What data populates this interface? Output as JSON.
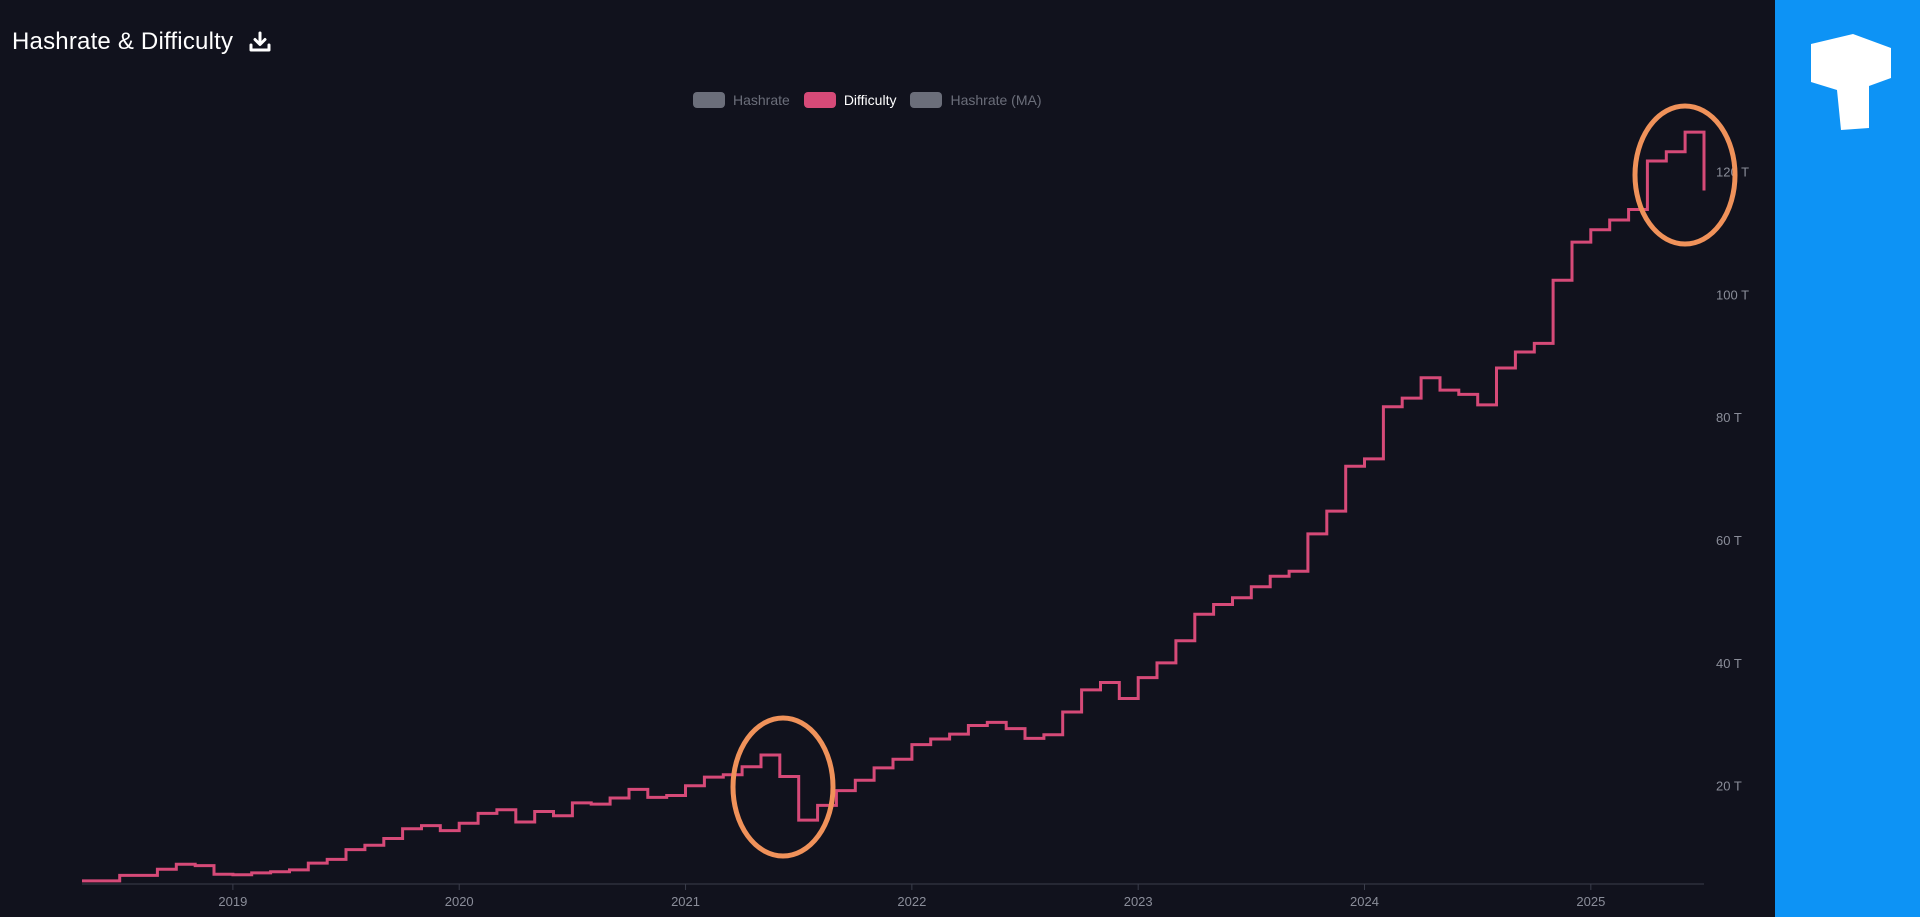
{
  "header": {
    "title": "Hashrate & Difficulty"
  },
  "icons": {
    "download": "download-icon",
    "brand": "brand-logo-icon"
  },
  "colors": {
    "background": "#11121d",
    "difficulty_line": "#d64a78",
    "inactive_legend": "#6b6e7a",
    "highlight_circle": "#f0925a",
    "side_panel": "#0d93f5"
  },
  "chart_data": {
    "type": "line",
    "title": "Hashrate & Difficulty",
    "legend": [
      {
        "name": "Hashrate",
        "active": false,
        "color": "#6b6e7a"
      },
      {
        "name": "Difficulty",
        "active": true,
        "color": "#d64a78"
      },
      {
        "name": "Hashrate (MA)",
        "active": false,
        "color": "#6b6e7a"
      }
    ],
    "legend_position": "top-center",
    "x_ticks": [
      "2019",
      "2020",
      "2021",
      "2022",
      "2023",
      "2024",
      "2025"
    ],
    "y_ticks": [
      "20 T",
      "40 T",
      "60 T",
      "80 T",
      "100 T",
      "120 T"
    ],
    "y_tick_values": [
      20,
      40,
      60,
      80,
      100,
      120
    ],
    "xlim": [
      "2018-05",
      "2025-07"
    ],
    "ylim": [
      4,
      130
    ],
    "y_axis_side": "right",
    "grid": false,
    "series": [
      {
        "name": "Difficulty",
        "step": true,
        "points": [
          [
            "2018-05",
            4.5
          ],
          [
            "2018-07",
            5.4
          ],
          [
            "2018-09",
            6.4
          ],
          [
            "2018-10",
            7.2
          ],
          [
            "2018-11",
            7.0
          ],
          [
            "2018-12",
            5.6
          ],
          [
            "2019-01",
            5.5
          ],
          [
            "2019-02",
            5.8
          ],
          [
            "2019-03",
            6.0
          ],
          [
            "2019-04",
            6.3
          ],
          [
            "2019-05",
            7.4
          ],
          [
            "2019-06",
            8.0
          ],
          [
            "2019-07",
            9.6
          ],
          [
            "2019-08",
            10.3
          ],
          [
            "2019-09",
            11.4
          ],
          [
            "2019-10",
            13.0
          ],
          [
            "2019-11",
            13.5
          ],
          [
            "2019-12",
            12.7
          ],
          [
            "2020-01",
            13.9
          ],
          [
            "2020-02",
            15.5
          ],
          [
            "2020-03",
            16.1
          ],
          [
            "2020-04",
            14.1
          ],
          [
            "2020-05",
            15.8
          ],
          [
            "2020-06",
            15.1
          ],
          [
            "2020-07",
            17.2
          ],
          [
            "2020-08",
            17.0
          ],
          [
            "2020-09",
            18.0
          ],
          [
            "2020-10",
            19.4
          ],
          [
            "2020-11",
            18.1
          ],
          [
            "2020-12",
            18.4
          ],
          [
            "2021-01",
            20.0
          ],
          [
            "2021-02",
            21.4
          ],
          [
            "2021-03",
            21.8
          ],
          [
            "2021-04",
            23.1
          ],
          [
            "2021-05",
            25.0
          ],
          [
            "2021-06",
            21.5
          ],
          [
            "2021-07",
            14.4
          ],
          [
            "2021-08",
            16.8
          ],
          [
            "2021-09",
            19.2
          ],
          [
            "2021-10",
            20.9
          ],
          [
            "2021-11",
            22.9
          ],
          [
            "2021-12",
            24.3
          ],
          [
            "2022-01",
            26.7
          ],
          [
            "2022-02",
            27.6
          ],
          [
            "2022-03",
            28.4
          ],
          [
            "2022-04",
            29.8
          ],
          [
            "2022-05",
            30.3
          ],
          [
            "2022-06",
            29.3
          ],
          [
            "2022-07",
            27.7
          ],
          [
            "2022-08",
            28.3
          ],
          [
            "2022-09",
            32.0
          ],
          [
            "2022-10",
            35.6
          ],
          [
            "2022-11",
            36.8
          ],
          [
            "2022-12",
            34.2
          ],
          [
            "2023-01",
            37.6
          ],
          [
            "2023-02",
            40.0
          ],
          [
            "2023-03",
            43.6
          ],
          [
            "2023-04",
            47.9
          ],
          [
            "2023-05",
            49.5
          ],
          [
            "2023-06",
            50.6
          ],
          [
            "2023-07",
            52.4
          ],
          [
            "2023-08",
            54.1
          ],
          [
            "2023-09",
            54.9
          ],
          [
            "2023-10",
            61.0
          ],
          [
            "2023-11",
            64.7
          ],
          [
            "2023-12",
            72.0
          ],
          [
            "2024-01",
            73.2
          ],
          [
            "2024-02",
            81.7
          ],
          [
            "2024-03",
            83.1
          ],
          [
            "2024-04",
            86.4
          ],
          [
            "2024-05",
            84.4
          ],
          [
            "2024-06",
            83.7
          ],
          [
            "2024-07",
            82.0
          ],
          [
            "2024-08",
            88.0
          ],
          [
            "2024-09",
            90.6
          ],
          [
            "2024-10",
            92.0
          ],
          [
            "2024-11",
            102.3
          ],
          [
            "2024-12",
            108.5
          ],
          [
            "2025-01",
            110.5
          ],
          [
            "2025-02",
            112.1
          ],
          [
            "2025-03",
            113.8
          ],
          [
            "2025-04",
            121.7
          ],
          [
            "2025-05",
            123.2
          ],
          [
            "2025-06",
            126.4
          ],
          [
            "2025-07",
            116.9
          ]
        ]
      }
    ]
  }
}
